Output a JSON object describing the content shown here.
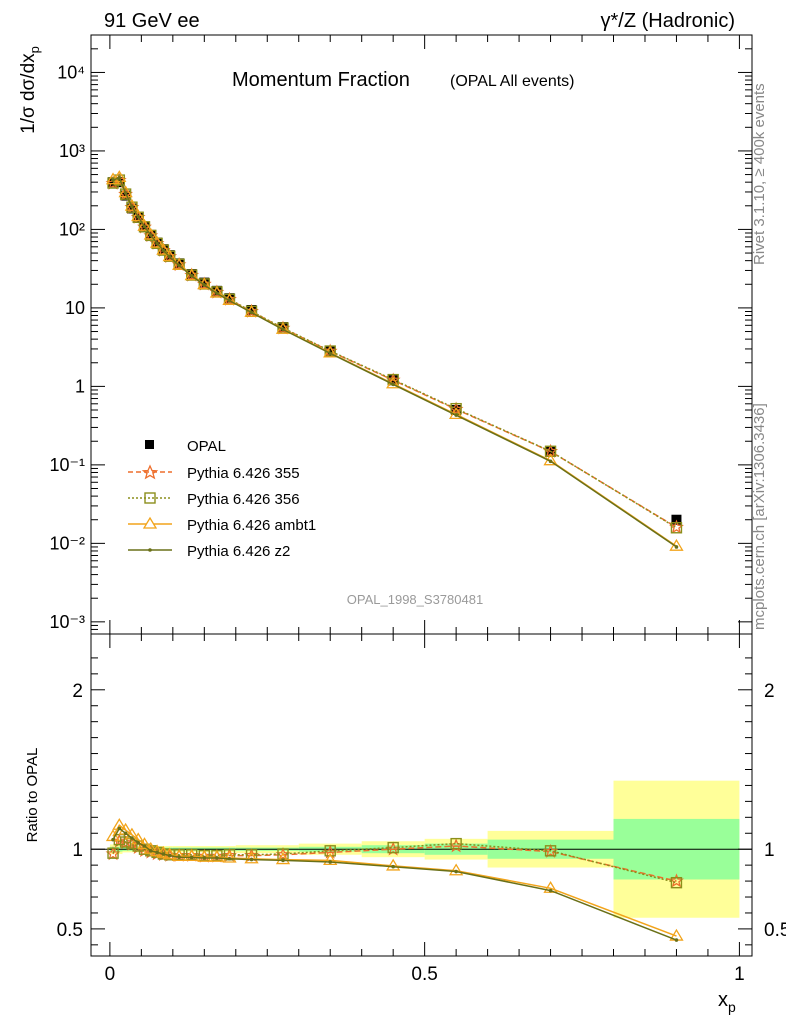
{
  "header": {
    "left": "91 GeV ee",
    "right": "γ*/Z (Hadronic)"
  },
  "side_text": {
    "rivet": "Rivet 3.1.10, ≥ 400k events",
    "mcplots": "mcplots.cern.ch [arXiv:1306.3436]"
  },
  "chart_data": [
    {
      "type": "scatter",
      "title": "Momentum Fraction",
      "subtitle": "(OPAL All events)",
      "watermark": "OPAL_1998_S3780481",
      "ylabel": "1/σ dσ/dx_p",
      "yscale": "log",
      "ylim": [
        0.0007,
        30000
      ],
      "xlim": [
        -0.03,
        1.02
      ],
      "ytick_labels": [
        "10⁻³",
        "10⁻²",
        "10⁻¹",
        "1",
        "10",
        "10²",
        "10³",
        "10⁴"
      ],
      "ytick_values": [
        0.001,
        0.01,
        0.1,
        1,
        10,
        100,
        1000,
        10000
      ],
      "legend_position": "left",
      "x": [
        0.005,
        0.015,
        0.025,
        0.035,
        0.045,
        0.055,
        0.065,
        0.075,
        0.085,
        0.095,
        0.11,
        0.13,
        0.15,
        0.17,
        0.19,
        0.225,
        0.275,
        0.35,
        0.45,
        0.55,
        0.7,
        0.9
      ],
      "series": [
        {
          "name": "OPAL",
          "color": "#000000",
          "marker": "square-filled",
          "values": [
            400,
            400,
            270,
            185,
            140,
            108,
            85,
            68,
            56,
            47,
            37,
            27,
            21,
            16.5,
            13.3,
            9.4,
            5.7,
            2.85,
            1.2,
            0.5,
            0.15,
            0.02
          ]
        },
        {
          "name": "Pythia 6.426 355",
          "color": "#ee6f2d",
          "marker": "star",
          "line": "dashed",
          "values": [
            385,
            420,
            280,
            190,
            142,
            107,
            83,
            66,
            54,
            45,
            35.5,
            26,
            20,
            15.8,
            12.8,
            9.0,
            5.5,
            2.8,
            1.2,
            0.51,
            0.148,
            0.016
          ]
        },
        {
          "name": "Pythia 6.426 356",
          "color": "#8b8f1c",
          "marker": "square-open",
          "line": "dotted",
          "values": [
            390,
            425,
            282,
            192,
            143,
            108,
            84,
            66.5,
            54.5,
            45.5,
            36,
            26.2,
            20.2,
            16.0,
            12.9,
            9.05,
            5.55,
            2.82,
            1.22,
            0.52,
            0.149,
            0.0158
          ]
        },
        {
          "name": "Pythia 6.426 ambt1",
          "color": "#f2a41b",
          "marker": "triangle",
          "line": "solid",
          "values": [
            430,
            460,
            295,
            198,
            146,
            110,
            85,
            67,
            54.5,
            45,
            35,
            25.8,
            19.8,
            15.5,
            12.5,
            8.8,
            5.35,
            2.67,
            1.08,
            0.44,
            0.113,
            0.0092
          ]
        },
        {
          "name": "Pythia 6.426 z2",
          "color": "#6a7018",
          "marker": "dot",
          "line": "solid",
          "values": [
            425,
            455,
            292,
            196,
            145,
            109,
            84.5,
            66.5,
            54,
            44.8,
            34.8,
            25.6,
            19.6,
            15.3,
            12.4,
            8.75,
            5.3,
            2.64,
            1.06,
            0.43,
            0.111,
            0.009
          ]
        }
      ]
    },
    {
      "type": "line",
      "xlabel": "x_p",
      "ylabel": "Ratio to OPAL",
      "ylim": [
        0.33,
        2.35
      ],
      "xlim": [
        -0.03,
        1.02
      ],
      "ytick_labels": [
        "0.5",
        "1",
        "2"
      ],
      "ytick_values": [
        0.5,
        1,
        2
      ],
      "xtick_labels": [
        "0",
        "0.5",
        "1"
      ],
      "xtick_values": [
        0,
        0.5,
        1
      ],
      "reference_line": 1,
      "bands": [
        {
          "x0": 0.0,
          "x1": 0.02,
          "stat": 0.015,
          "total": 0.03
        },
        {
          "x0": 0.02,
          "x1": 0.1,
          "stat": 0.01,
          "total": 0.02
        },
        {
          "x0": 0.1,
          "x1": 0.2,
          "stat": 0.01,
          "total": 0.02
        },
        {
          "x0": 0.2,
          "x1": 0.3,
          "stat": 0.01,
          "total": 0.025
        },
        {
          "x0": 0.3,
          "x1": 0.4,
          "stat": 0.015,
          "total": 0.035
        },
        {
          "x0": 0.4,
          "x1": 0.5,
          "stat": 0.025,
          "total": 0.05
        },
        {
          "x0": 0.5,
          "x1": 0.6,
          "stat": 0.035,
          "total": 0.065
        },
        {
          "x0": 0.6,
          "x1": 0.8,
          "stat": 0.06,
          "total": 0.115
        },
        {
          "x0": 0.8,
          "x1": 1.0,
          "stat": 0.19,
          "total": 0.43
        }
      ],
      "x": [
        0.005,
        0.015,
        0.025,
        0.035,
        0.045,
        0.055,
        0.065,
        0.075,
        0.085,
        0.095,
        0.11,
        0.13,
        0.15,
        0.17,
        0.19,
        0.225,
        0.275,
        0.35,
        0.45,
        0.55,
        0.7,
        0.9
      ],
      "series": [
        {
          "name": "Pythia 6.426 355",
          "color": "#ee6f2d",
          "marker": "star",
          "line": "dashed",
          "values": [
            0.97,
            1.05,
            1.04,
            1.03,
            1.01,
            0.99,
            0.98,
            0.97,
            0.965,
            0.96,
            0.96,
            0.96,
            0.955,
            0.955,
            0.96,
            0.96,
            0.965,
            0.98,
            1.0,
            1.02,
            0.985,
            0.8
          ]
        },
        {
          "name": "Pythia 6.426 356",
          "color": "#8b8f1c",
          "marker": "square-open",
          "line": "dotted",
          "values": [
            0.975,
            1.06,
            1.045,
            1.035,
            1.02,
            1.0,
            0.99,
            0.98,
            0.97,
            0.965,
            0.965,
            0.965,
            0.96,
            0.96,
            0.965,
            0.965,
            0.97,
            0.99,
            1.01,
            1.035,
            0.99,
            0.79
          ]
        },
        {
          "name": "Pythia 6.426 ambt1",
          "color": "#f2a41b",
          "marker": "triangle",
          "line": "solid",
          "values": [
            1.08,
            1.15,
            1.12,
            1.09,
            1.06,
            1.03,
            1.0,
            0.985,
            0.975,
            0.965,
            0.955,
            0.955,
            0.95,
            0.95,
            0.945,
            0.94,
            0.935,
            0.93,
            0.895,
            0.865,
            0.755,
            0.455
          ]
        },
        {
          "name": "Pythia 6.426 z2",
          "color": "#6a7018",
          "marker": "dot",
          "line": "solid",
          "values": [
            1.06,
            1.13,
            1.1,
            1.07,
            1.04,
            1.02,
            0.99,
            0.98,
            0.97,
            0.96,
            0.95,
            0.948,
            0.945,
            0.945,
            0.94,
            0.935,
            0.93,
            0.92,
            0.89,
            0.86,
            0.74,
            0.43
          ]
        }
      ]
    }
  ]
}
